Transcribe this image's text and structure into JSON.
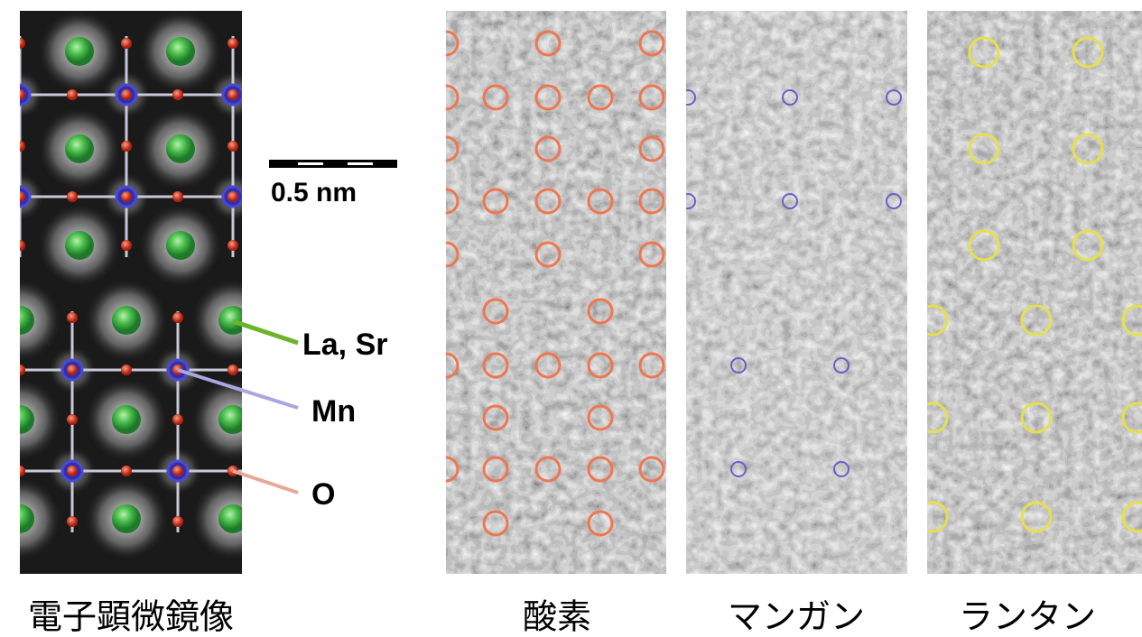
{
  "labels": {
    "la_sr": "La, Sr",
    "mn": "Mn",
    "o": "O"
  },
  "scale_bar": "0.5 nm",
  "captions": [
    "電子顕微鏡像",
    "酸素",
    "マンガン",
    "ランタン"
  ]
}
